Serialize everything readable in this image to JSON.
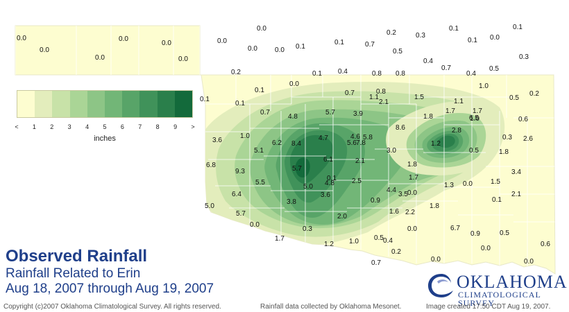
{
  "title": "Observed Rainfall",
  "subtitle_1": "Rainfall Related to Erin",
  "subtitle_2": "Aug 18, 2007 through Aug 19, 2007",
  "footer": {
    "copyright": "Copyright (c)2007 Oklahoma Climatological Survey. All rights reserved.",
    "data_source": "Rainfall data collected by Oklahoma Mesonet.",
    "created": "Image created 17:50 CDT Aug 19, 2007."
  },
  "logo": {
    "line1": "OKLAHOMA",
    "line2": "CLIMATOLOGICAL SURVEY"
  },
  "legend": {
    "units": "inches",
    "ticks": [
      "<",
      "1",
      "2",
      "3",
      "4",
      "5",
      "6",
      "7",
      "8",
      "9",
      ">"
    ],
    "colors": [
      "#fdfdd0",
      "#e3edbc",
      "#c8e2a8",
      "#aad596",
      "#8dc586",
      "#72b677",
      "#58a468",
      "#40925a",
      "#2a7f4b",
      "#136a3b"
    ]
  },
  "colors": {
    "state_fill": "#fdfdd0",
    "county_lines": "#ffffff",
    "title": "#1f3f8a"
  },
  "stations": [
    "0.0",
    "0.0",
    "0.0",
    "0.0",
    "0.0",
    "0.0",
    "0.0",
    "0.0",
    "0.0",
    "0.0",
    "0.1",
    "0.1",
    "0.7",
    "0.5",
    "0.2",
    "0.3",
    "0.1",
    "0.0",
    "0.1",
    "0.4",
    "0.1",
    "0.3",
    "0.7",
    "0.4",
    "0.5",
    "0.2",
    "0.1",
    "0.4",
    "0.8",
    "0.8",
    "1.0",
    "0.1",
    "0.1",
    "0.0",
    "0.7",
    "1.1",
    "0.8",
    "2.1",
    "1.5",
    "1.1",
    "0.5",
    "0.2",
    "0.1",
    "0.7",
    "4.8",
    "5.7",
    "3.9",
    "1.8",
    "1.7",
    "1.7",
    "0.6",
    "1.0",
    "1.0",
    "3.6",
    "8.6",
    "2.8",
    "6.5",
    "6.2",
    "8.4",
    "4.7",
    "4.6",
    "5.8",
    "5.6",
    "7.8",
    "1.2",
    "0.3",
    "2.6",
    "5.1",
    "3.0",
    "0.5",
    "1.8",
    "6.8",
    "6.1",
    "2.1",
    "1.8",
    "9.3",
    "5.7",
    "0.1",
    "3.4",
    "5.5",
    "5.0",
    "4.8",
    "2.5",
    "1.7",
    "1.3",
    "0.0",
    "1.5",
    "6.4",
    "3.6",
    "4.4",
    "3.5",
    "0.0",
    "0.1",
    "2.1",
    "5.0",
    "3.8",
    "0.9",
    "1.8",
    "5.7",
    "2.0",
    "1.6",
    "2.2",
    "0.0",
    "6.7",
    "0.3",
    "0.0",
    "0.9",
    "0.5",
    "1.7",
    "1.2",
    "1.0",
    "0.5",
    "0.4",
    "0.2",
    "0.0",
    "0.6",
    "0.7",
    "0.0",
    "0.0"
  ]
}
